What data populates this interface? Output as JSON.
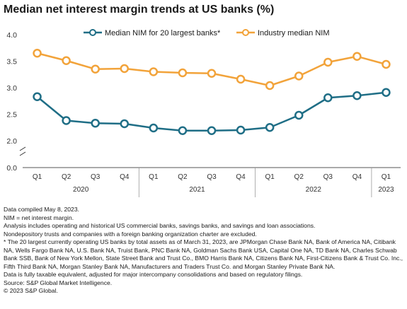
{
  "title": "Median net interest margin trends at US banks (%)",
  "chart_data": {
    "type": "line",
    "title": "Median net interest margin trends at US banks (%)",
    "categories": [
      "Q1",
      "Q2",
      "Q3",
      "Q4",
      "Q1",
      "Q2",
      "Q3",
      "Q4",
      "Q1",
      "Q2",
      "Q3",
      "Q4",
      "Q1"
    ],
    "year_groups": [
      {
        "label": "2020",
        "start": 0,
        "end": 3
      },
      {
        "label": "2021",
        "start": 4,
        "end": 7
      },
      {
        "label": "2022",
        "start": 8,
        "end": 11
      },
      {
        "label": "2023",
        "start": 12,
        "end": 12
      }
    ],
    "series": [
      {
        "name": "Median NIM for 20 largest banks*",
        "color": "#1f6e86",
        "values": [
          2.83,
          2.38,
          2.33,
          2.32,
          2.24,
          2.19,
          2.19,
          2.2,
          2.25,
          2.48,
          2.81,
          2.85,
          2.91
        ]
      },
      {
        "name": "Industry median NIM",
        "color": "#f2a33a",
        "values": [
          3.65,
          3.51,
          3.35,
          3.36,
          3.3,
          3.28,
          3.27,
          3.16,
          3.04,
          3.22,
          3.48,
          3.59,
          3.44
        ]
      }
    ],
    "y_ticks": [
      "4.0",
      "3.5",
      "3.0",
      "2.5",
      "2.0",
      "0.0"
    ],
    "ylim": [
      2.0,
      4.0
    ],
    "axis_break": true,
    "legend_position": "top",
    "grid": false
  },
  "notes": [
    "Data compiled May 8, 2023.",
    "NIM = net interest margin.",
    "Analysis includes operating and historical US commercial banks, savings banks, and savings and loan associations.",
    "Nondepository trusts and companies with a foreign banking organization charter are excluded.",
    "* The 20 largest currently operating US banks by total assets as of March 31, 2023, are JPMorgan Chase Bank NA, Bank of America NA, Citibank NA, Wells Fargo Bank NA, U.S. Bank NA, Truist Bank, PNC Bank NA, Goldman Sachs Bank USA, Capital One NA, TD Bank NA, Charles Schwab Bank SSB, Bank of New York Mellon, State Street Bank and Trust Co., BMO Harris Bank NA, Citizens Bank NA, First-Citizens Bank & Trust Co. Inc., Fifth Third Bank NA, Morgan Stanley Bank NA, Manufacturers and Traders Trust Co. and Morgan Stanley Private Bank NA.",
    "Data is fully taxable equivalent, adjusted for major intercompany consolidations and based on regulatory filings.",
    "Source: S&P Global Market Intelligence.",
    "© 2023 S&P Global."
  ]
}
